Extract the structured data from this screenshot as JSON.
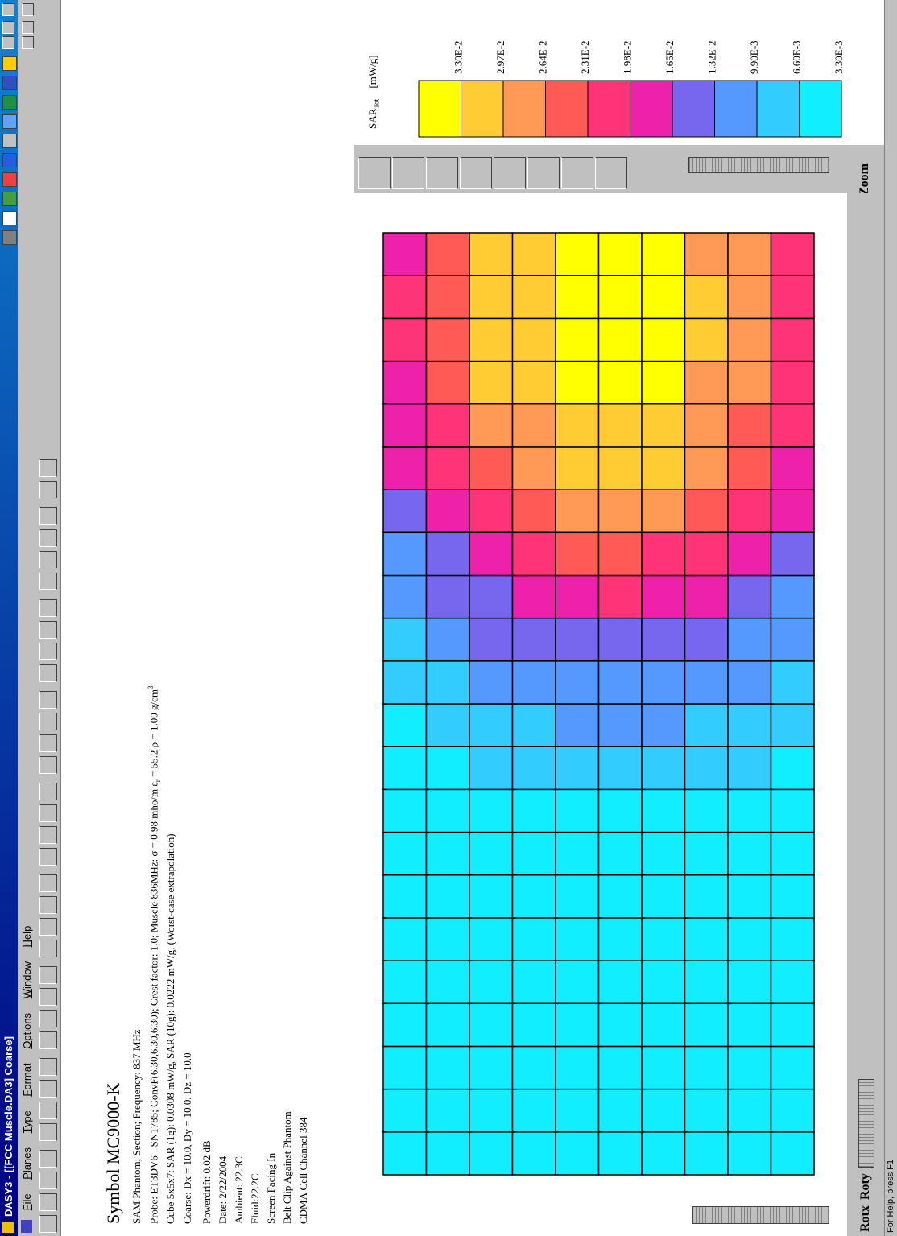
{
  "window": {
    "title": "DASY3 - [[FCC Muscle.DA3] Coarse]"
  },
  "menu": [
    "File",
    "Planes",
    "Type",
    "Format",
    "Options",
    "Window",
    "Help"
  ],
  "info": {
    "heading": "Symbol MC9000-K",
    "line1": "SAM Phantom; Section; Frequency: 837 MHz",
    "probe": [
      "Probe: ET3DV6 - SN1785; ConvF(6.30,6.30,6.30); Crest factor: 1.0; Muscle 836MHz: σ = 0.98 mho/m ε",
      "r",
      " = 55.2 ρ = 1.00 g/cm",
      "3"
    ],
    "line3": "Cube 5x5x7: SAR (1g): 0.0308 mW/g, SAR (10g): 0.0222 mW/g, (Worst-case extrapolation)",
    "line4": "Coarse: Dx = 10.0, Dy = 10.0, Dz = 10.0",
    "line5": "Powerdrift: 0.02 dB",
    "line6": "Date: 2/22/2004",
    "line7": "Ambient: 22.3C",
    "line8": "Fluid:22.2C",
    "line9": "Screen Facing In",
    "line10": "Belt Clip Against Phantom",
    "line11": "CDMA Cell Channel 384"
  },
  "legend": {
    "quantity": "SAR",
    "subscript": "Tot",
    "unit": "[mW/g]",
    "levels": [
      {
        "value": 0.033,
        "label": "3.30E-2",
        "color": "#ffff00"
      },
      {
        "value": 0.0297,
        "label": "2.97E-2",
        "color": "#ffcc33"
      },
      {
        "value": 0.0264,
        "label": "2.64E-2",
        "color": "#ff9955"
      },
      {
        "value": 0.0231,
        "label": "2.31E-2",
        "color": "#ff5a55"
      },
      {
        "value": 0.0198,
        "label": "1.98E-2",
        "color": "#ff3377"
      },
      {
        "value": 0.0165,
        "label": "1.65E-2",
        "color": "#ee22aa"
      },
      {
        "value": 0.0132,
        "label": "1.32E-2",
        "color": "#7766ee"
      },
      {
        "value": 0.0099,
        "label": "9.90E-3",
        "color": "#5599ff"
      },
      {
        "value": 0.0066,
        "label": "6.60E-3",
        "color": "#33ccff"
      },
      {
        "value": 0.0033,
        "label": "3.30E-3",
        "color": "#11eeff"
      }
    ]
  },
  "controls": {
    "zoom": "Zoom",
    "rotx": "Rotx",
    "roty": "Roty"
  },
  "status": "For Help, press F1",
  "heatmap": {
    "columns": [
      [
        0.003,
        0.003,
        0.003,
        0.003,
        0.003,
        0.003,
        0.003,
        0.003,
        0.003,
        0.003
      ],
      [
        0.003,
        0.003,
        0.0031,
        0.0031,
        0.0031,
        0.0031,
        0.0031,
        0.0031,
        0.0031,
        0.003
      ],
      [
        0.0031,
        0.0031,
        0.0031,
        0.0031,
        0.0031,
        0.0031,
        0.0031,
        0.0031,
        0.0031,
        0.0031
      ],
      [
        0.0031,
        0.0032,
        0.0032,
        0.0033,
        0.0033,
        0.0033,
        0.0033,
        0.0032,
        0.0032,
        0.0032
      ],
      [
        0.0032,
        0.0033,
        0.0034,
        0.0034,
        0.0035,
        0.0035,
        0.0035,
        0.0034,
        0.0034,
        0.0033
      ],
      [
        0.0034,
        0.0035,
        0.0037,
        0.0038,
        0.0038,
        0.0039,
        0.0038,
        0.0037,
        0.0036,
        0.0035
      ],
      [
        0.0037,
        0.0039,
        0.0041,
        0.0043,
        0.0044,
        0.0044,
        0.0043,
        0.0042,
        0.004,
        0.0038
      ],
      [
        0.004,
        0.0044,
        0.0047,
        0.005,
        0.0052,
        0.0052,
        0.0051,
        0.0049,
        0.0046,
        0.0042
      ],
      [
        0.0046,
        0.0051,
        0.0056,
        0.0061,
        0.0063,
        0.0064,
        0.0062,
        0.0059,
        0.0054,
        0.0049
      ],
      [
        0.0054,
        0.0062,
        0.0069,
        0.0076,
        0.008,
        0.0081,
        0.0079,
        0.0073,
        0.0066,
        0.0058
      ],
      [
        0.0064,
        0.0075,
        0.0086,
        0.0095,
        0.0101,
        0.0102,
        0.0099,
        0.0091,
        0.0081,
        0.007
      ],
      [
        0.0077,
        0.0092,
        0.0107,
        0.012,
        0.0128,
        0.013,
        0.0125,
        0.0115,
        0.0101,
        0.0086
      ],
      [
        0.0092,
        0.0112,
        0.0132,
        0.0149,
        0.0159,
        0.0162,
        0.0156,
        0.0143,
        0.0124,
        0.0104
      ],
      [
        0.0109,
        0.0136,
        0.0161,
        0.0183,
        0.0196,
        0.02,
        0.0192,
        0.0175,
        0.0151,
        0.0125
      ],
      [
        0.0128,
        0.016,
        0.0192,
        0.0219,
        0.0236,
        0.024,
        0.023,
        0.0209,
        0.018,
        0.0147
      ],
      [
        0.0147,
        0.0186,
        0.0224,
        0.0255,
        0.0276,
        0.0281,
        0.0269,
        0.0244,
        0.0209,
        0.017
      ],
      [
        0.0165,
        0.0209,
        0.0253,
        0.029,
        0.0313,
        0.0319,
        0.0305,
        0.0276,
        0.0236,
        0.0191
      ],
      [
        0.018,
        0.023,
        0.0279,
        0.0289,
        0.0315,
        0.0322,
        0.0307,
        0.0274,
        0.026,
        0.021
      ],
      [
        0.0192,
        0.0245,
        0.0297,
        0.0311,
        0.0339,
        0.0346,
        0.033,
        0.0295,
        0.0277,
        0.0223
      ],
      [
        0.0198,
        0.0253,
        0.0307,
        0.0322,
        0.0351,
        0.0359,
        0.0342,
        0.0306,
        0.0286,
        0.023
      ],
      [
        0.0198,
        0.0253,
        0.0307,
        0.0322,
        0.0351,
        0.0359,
        0.0342,
        0.0306,
        0.0286,
        0.023
      ],
      [
        0.0192,
        0.0245,
        0.0297,
        0.0311,
        0.0339,
        0.0346,
        0.033,
        0.0295,
        0.0277,
        0.0223
      ]
    ]
  }
}
